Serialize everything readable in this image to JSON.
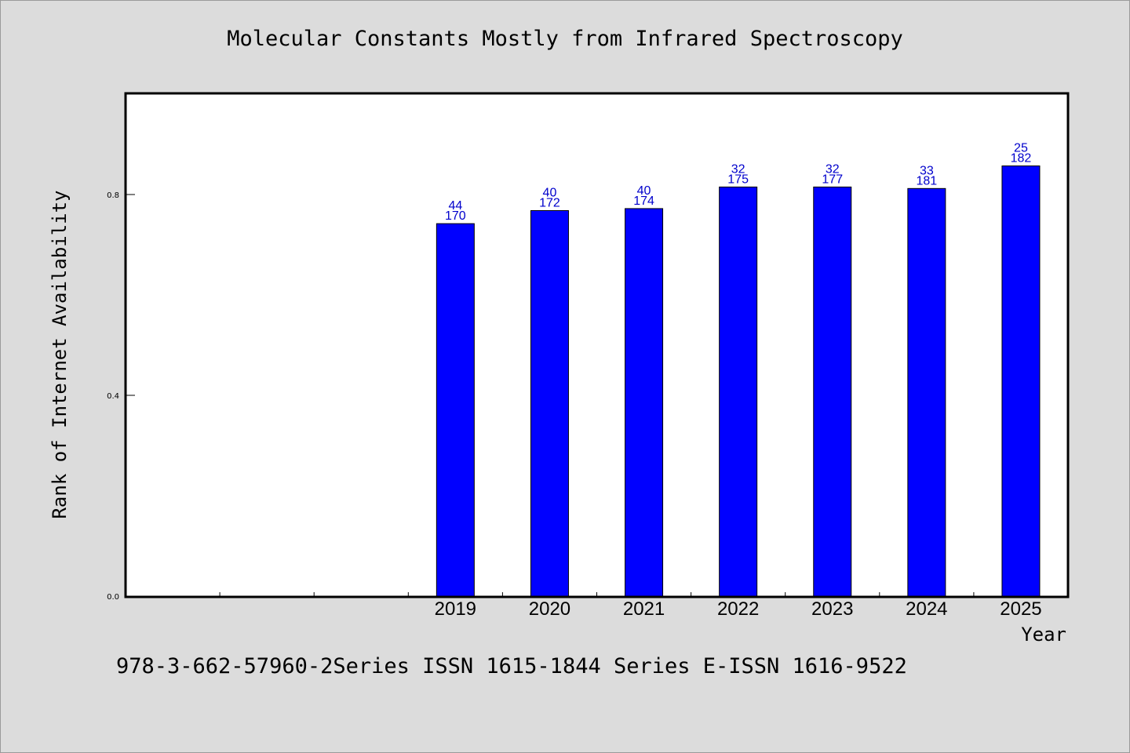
{
  "chart_data": {
    "type": "bar",
    "title": "Molecular Constants Mostly from Infrared Spectroscopy",
    "xlabel": "Year",
    "ylabel": "Rank of Internet Availability",
    "categories": [
      "",
      "",
      "",
      "2019",
      "2020",
      "2021",
      "2022",
      "2023",
      "2024",
      "2025"
    ],
    "values": [
      null,
      null,
      null,
      0.742,
      0.768,
      0.772,
      0.815,
      0.815,
      0.812,
      0.857
    ],
    "bar_labels_top": [
      "",
      "",
      "",
      "44",
      "40",
      "40",
      "32",
      "32",
      "33",
      "25"
    ],
    "bar_labels_bottom": [
      "",
      "",
      "",
      "170",
      "172",
      "174",
      "175",
      "177",
      "181",
      "182"
    ],
    "ylim": [
      0,
      1.0
    ],
    "yticks": [
      0.0,
      0.4,
      0.8
    ],
    "ytick_labels": [
      "0.0",
      "0.4",
      "0.8"
    ],
    "grid": false,
    "bar_color": "#0000ff",
    "label_color": "#0000cc"
  },
  "footer": "978-3-662-57960-2Series ISSN 1615-1844 Series E-ISSN 1616-9522"
}
